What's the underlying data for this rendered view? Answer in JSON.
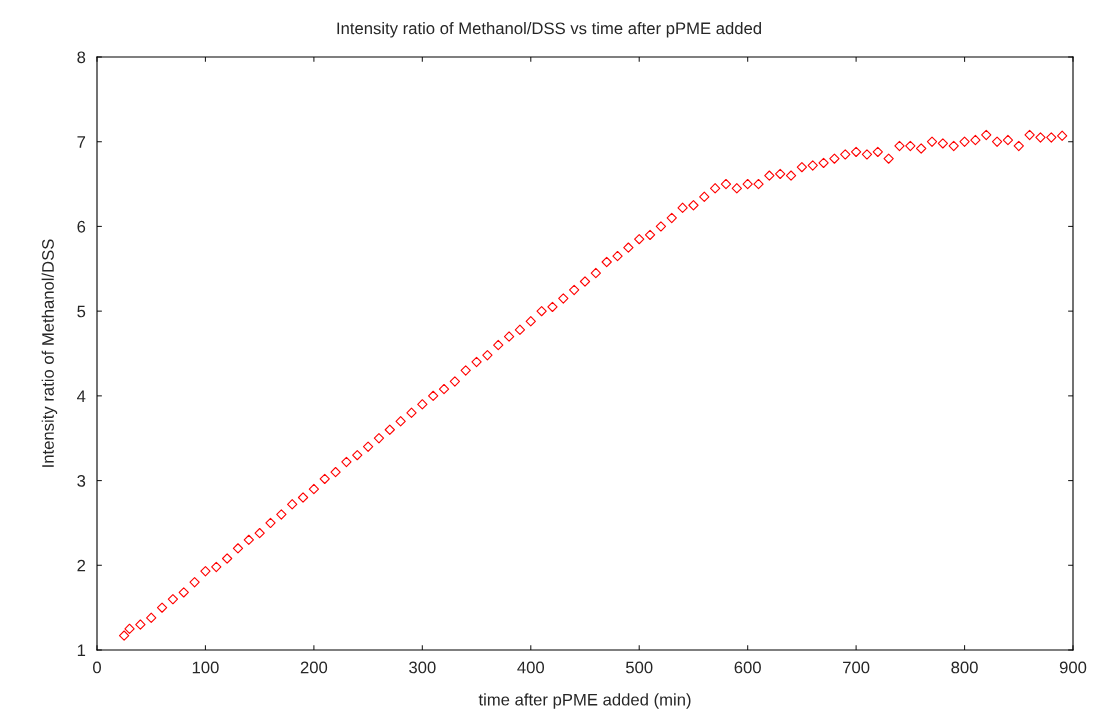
{
  "chart_data": {
    "type": "scatter",
    "title": "Intensity ratio of Methanol/DSS vs time after pPME added",
    "xlabel": "time after pPME added (min)",
    "ylabel": "Intensity ratio of Methanol/DSS",
    "x": [
      25,
      30,
      40,
      50,
      60,
      70,
      80,
      90,
      100,
      110,
      120,
      130,
      140,
      150,
      160,
      170,
      180,
      190,
      200,
      210,
      220,
      230,
      240,
      250,
      260,
      270,
      280,
      290,
      300,
      310,
      320,
      330,
      340,
      350,
      360,
      370,
      380,
      390,
      400,
      410,
      420,
      430,
      440,
      450,
      460,
      470,
      480,
      490,
      500,
      510,
      520,
      530,
      540,
      550,
      560,
      570,
      580,
      590,
      600,
      610,
      620,
      630,
      640,
      650,
      660,
      670,
      680,
      690,
      700,
      710,
      720,
      730,
      740,
      750,
      760,
      770,
      780,
      790,
      800,
      810,
      820,
      830,
      840,
      850,
      860,
      870,
      880,
      890
    ],
    "series": [
      {
        "color": "#ff0000",
        "values": [
          1.17,
          1.25,
          1.3,
          1.38,
          1.5,
          1.6,
          1.68,
          1.8,
          1.93,
          1.98,
          2.08,
          2.2,
          2.3,
          2.38,
          2.5,
          2.6,
          2.72,
          2.8,
          2.9,
          3.02,
          3.1,
          3.22,
          3.3,
          3.4,
          3.5,
          3.6,
          3.7,
          3.8,
          3.9,
          4.0,
          4.08,
          4.17,
          4.3,
          4.4,
          4.48,
          4.6,
          4.7,
          4.78,
          4.88,
          5.0,
          5.05,
          5.15,
          5.25,
          5.35,
          5.45,
          5.58,
          5.65,
          5.75,
          5.85,
          5.9,
          6.0,
          6.1,
          6.22,
          6.25,
          6.35,
          6.45,
          6.5,
          6.45,
          6.5,
          6.5,
          6.6,
          6.62,
          6.6,
          6.7,
          6.72,
          6.75,
          6.8,
          6.85,
          6.88,
          6.85,
          6.88,
          6.8,
          6.95,
          6.95,
          6.92,
          7.0,
          6.98,
          6.95,
          7.0,
          7.02,
          7.08,
          7.0,
          7.02,
          6.95,
          7.08,
          7.05,
          7.05,
          7.07
        ]
      }
    ],
    "xlim": [
      0,
      900
    ],
    "xticks": [
      0,
      100,
      200,
      300,
      400,
      500,
      600,
      700,
      800,
      900
    ],
    "ylim": [
      1,
      8
    ],
    "yticks": [
      1,
      2,
      3,
      4,
      5,
      6,
      7,
      8
    ],
    "marker": "diamond",
    "grid": false,
    "legend": false
  }
}
